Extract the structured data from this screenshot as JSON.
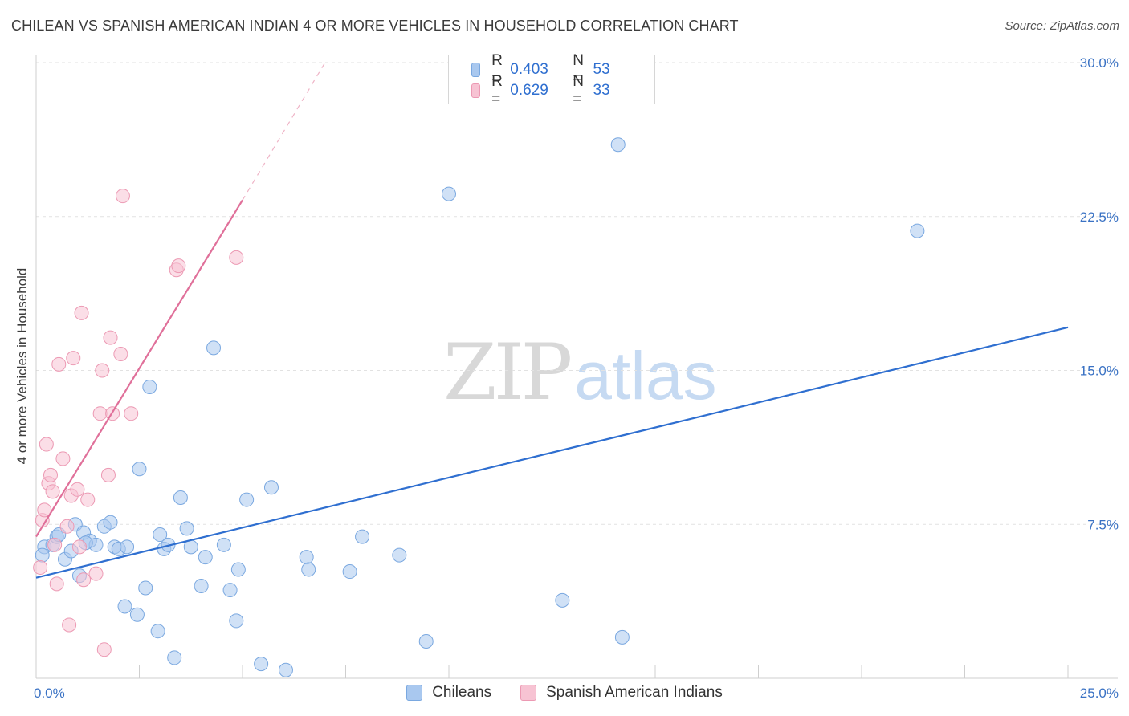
{
  "header": {
    "title": "CHILEAN VS SPANISH AMERICAN INDIAN 4 OR MORE VEHICLES IN HOUSEHOLD CORRELATION CHART",
    "source": "Source: ZipAtlas.com"
  },
  "watermark": {
    "zip": "ZIP",
    "atlas": "atlas"
  },
  "legend": {
    "rows": [
      {
        "r_label": "R =",
        "r_value": "0.403",
        "n_label": "N =",
        "n_value": "53",
        "color": "#a9c8ef",
        "border": "#7aa8e0"
      },
      {
        "r_label": "R =",
        "r_value": "0.629",
        "n_label": "N =",
        "n_value": "33",
        "color": "#f7c3d3",
        "border": "#ec99b3"
      }
    ]
  },
  "bottom_legend": [
    {
      "label": "Chileans",
      "color": "#a9c8ef",
      "border": "#7aa8e0"
    },
    {
      "label": "Spanish American Indians",
      "color": "#f7c3d3",
      "border": "#ec99b3"
    }
  ],
  "chart_data": {
    "type": "scatter",
    "title": "CHILEAN VS SPANISH AMERICAN INDIAN 4 OR MORE VEHICLES IN HOUSEHOLD CORRELATION CHART",
    "xlabel": "",
    "ylabel": "4 or more Vehicles in Household",
    "xlim": [
      0,
      25
    ],
    "ylim": [
      0,
      30
    ],
    "x_tick_labels": [
      "0.0%",
      "25.0%"
    ],
    "y_ticks": [
      7.5,
      15.0,
      22.5,
      30.0
    ],
    "y_tick_labels": [
      "7.5%",
      "15.0%",
      "22.5%",
      "30.0%"
    ],
    "grid": true,
    "legend_position": "top-center",
    "series": [
      {
        "name": "Chileans",
        "color": "#7aa8e0",
        "fill": "#a9c8ef",
        "trend": {
          "x": [
            0,
            25
          ],
          "y": [
            4.9,
            17.1
          ],
          "color": "#2f6fd0"
        },
        "points": [
          [
            0.2,
            6.4
          ],
          [
            0.4,
            6.5
          ],
          [
            0.5,
            6.9
          ],
          [
            0.55,
            7.0
          ],
          [
            0.7,
            5.8
          ],
          [
            0.85,
            6.2
          ],
          [
            0.95,
            7.5
          ],
          [
            1.05,
            5.0
          ],
          [
            1.15,
            7.1
          ],
          [
            1.3,
            6.7
          ],
          [
            1.45,
            6.5
          ],
          [
            1.65,
            7.4
          ],
          [
            1.8,
            7.6
          ],
          [
            1.9,
            6.4
          ],
          [
            2.0,
            6.3
          ],
          [
            2.15,
            3.5
          ],
          [
            2.45,
            3.1
          ],
          [
            2.5,
            10.2
          ],
          [
            2.65,
            4.4
          ],
          [
            2.75,
            14.2
          ],
          [
            2.95,
            2.3
          ],
          [
            3.0,
            7.0
          ],
          [
            3.1,
            6.3
          ],
          [
            3.2,
            6.5
          ],
          [
            3.35,
            1.0
          ],
          [
            3.5,
            8.8
          ],
          [
            3.65,
            7.3
          ],
          [
            3.75,
            6.4
          ],
          [
            4.0,
            4.5
          ],
          [
            4.1,
            5.9
          ],
          [
            4.3,
            16.1
          ],
          [
            4.55,
            6.5
          ],
          [
            4.7,
            4.3
          ],
          [
            4.85,
            2.8
          ],
          [
            4.9,
            5.3
          ],
          [
            5.1,
            8.7
          ],
          [
            5.45,
            0.7
          ],
          [
            5.7,
            9.3
          ],
          [
            6.05,
            0.4
          ],
          [
            6.55,
            5.9
          ],
          [
            6.6,
            5.3
          ],
          [
            7.6,
            5.2
          ],
          [
            7.9,
            6.9
          ],
          [
            8.8,
            6.0
          ],
          [
            9.45,
            1.8
          ],
          [
            10.0,
            23.6
          ],
          [
            12.75,
            3.8
          ],
          [
            14.1,
            26.0
          ],
          [
            14.2,
            2.0
          ],
          [
            21.35,
            21.8
          ],
          [
            0.15,
            6.0
          ],
          [
            1.2,
            6.6
          ],
          [
            2.2,
            6.4
          ]
        ]
      },
      {
        "name": "Spanish American Indians",
        "color": "#ec99b3",
        "fill": "#f7c3d3",
        "trend": {
          "x": [
            0,
            5
          ],
          "y": [
            6.9,
            23.3
          ],
          "dashed_to": [
            7,
            30
          ],
          "color": "#e0709a"
        },
        "points": [
          [
            0.1,
            5.4
          ],
          [
            0.15,
            7.7
          ],
          [
            0.2,
            8.2
          ],
          [
            0.25,
            11.4
          ],
          [
            0.3,
            9.5
          ],
          [
            0.35,
            9.9
          ],
          [
            0.4,
            9.1
          ],
          [
            0.45,
            6.5
          ],
          [
            0.5,
            4.6
          ],
          [
            0.55,
            15.3
          ],
          [
            0.65,
            10.7
          ],
          [
            0.75,
            7.4
          ],
          [
            0.8,
            2.6
          ],
          [
            0.85,
            8.9
          ],
          [
            0.9,
            15.6
          ],
          [
            1.0,
            9.2
          ],
          [
            1.05,
            6.4
          ],
          [
            1.1,
            17.8
          ],
          [
            1.15,
            4.8
          ],
          [
            1.25,
            8.7
          ],
          [
            1.45,
            5.1
          ],
          [
            1.55,
            12.9
          ],
          [
            1.6,
            15.0
          ],
          [
            1.65,
            1.4
          ],
          [
            1.75,
            9.9
          ],
          [
            1.8,
            16.6
          ],
          [
            1.85,
            12.9
          ],
          [
            2.05,
            15.8
          ],
          [
            2.1,
            23.5
          ],
          [
            2.3,
            12.9
          ],
          [
            3.4,
            19.9
          ],
          [
            3.45,
            20.1
          ],
          [
            4.85,
            20.5
          ]
        ]
      }
    ]
  }
}
